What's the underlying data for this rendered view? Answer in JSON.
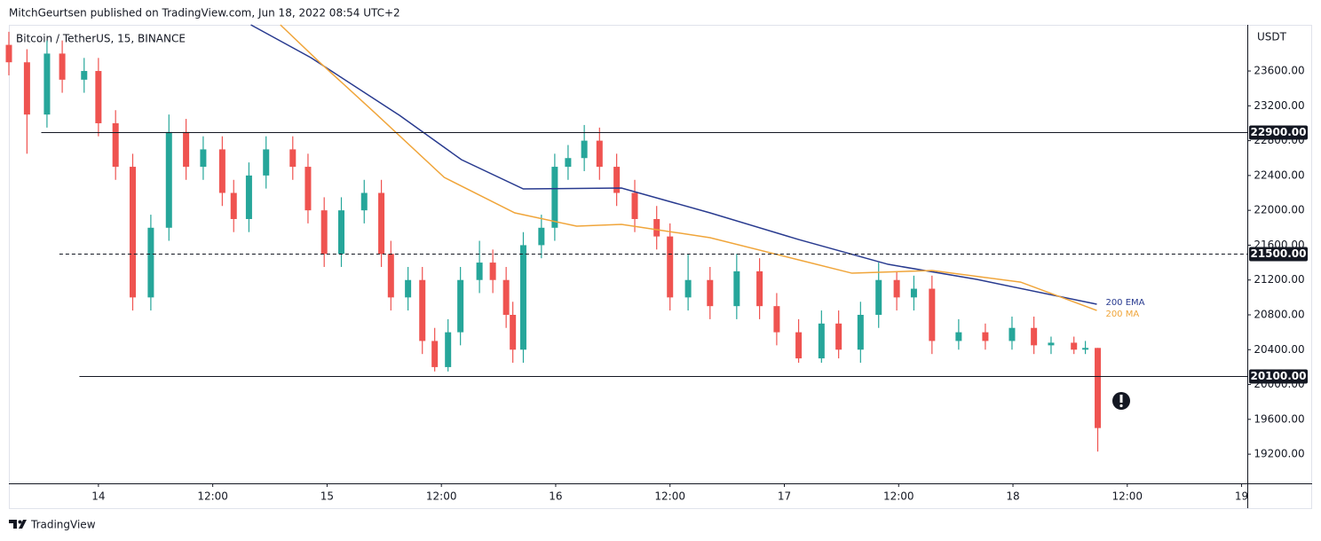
{
  "header": {
    "text": "MitchGeurtsen published on TradingView.com, Jun 18, 2022 08:54 UTC+2"
  },
  "footer": {
    "text": "TradingView"
  },
  "chart_data": {
    "type": "candlestick",
    "title": "Bitcoin / TetherUS, 15, BINANCE",
    "y_unit": "USDT",
    "xlim": [
      -9.4,
      120.6
    ],
    "ylim": [
      18865,
      24130
    ],
    "xticks": [
      {
        "value": 0,
        "label": "14"
      },
      {
        "value": 12,
        "label": "12:00"
      },
      {
        "value": 24,
        "label": "15"
      },
      {
        "value": 36,
        "label": "12:00"
      },
      {
        "value": 48,
        "label": "16"
      },
      {
        "value": 60,
        "label": "12:00"
      },
      {
        "value": 72,
        "label": "17"
      },
      {
        "value": 84,
        "label": "12:00"
      },
      {
        "value": 96,
        "label": "18"
      },
      {
        "value": 108,
        "label": "12:00"
      },
      {
        "value": 120,
        "label": "19"
      }
    ],
    "yticks": [
      {
        "value": 19200,
        "label": "19200.00"
      },
      {
        "value": 19600,
        "label": "19600.00"
      },
      {
        "value": 20000,
        "label": "20000.00"
      },
      {
        "value": 20400,
        "label": "20400.00"
      },
      {
        "value": 20800,
        "label": "20800.00"
      },
      {
        "value": 21200,
        "label": "21200.00"
      },
      {
        "value": 21600,
        "label": "21600.00"
      },
      {
        "value": 22000,
        "label": "22000.00"
      },
      {
        "value": 22400,
        "label": "22400.00"
      },
      {
        "value": 22800,
        "label": "22800.00"
      },
      {
        "value": 23200,
        "label": "23200.00"
      },
      {
        "value": 23600,
        "label": "23600.00"
      }
    ],
    "up_color": "#26a69a",
    "down_color": "#ef5350",
    "candles": {
      "x": [
        -9.4,
        -7.5,
        -5.4,
        -3.8,
        -1.5,
        0,
        1.8,
        3.6,
        5.5,
        7.4,
        9.2,
        11,
        13,
        14.2,
        15.8,
        17.6,
        20.4,
        22,
        23.7,
        25.5,
        27.9,
        29.7,
        30.7,
        32.5,
        34,
        35.3,
        36.7,
        38,
        40,
        41.4,
        42.8,
        43.5,
        44.6,
        46.5,
        47.9,
        49.3,
        51,
        52.6,
        54.4,
        56.3,
        58.6,
        60,
        61.9,
        64.2,
        67,
        69.4,
        71.2,
        73.5,
        75.9,
        77.7,
        80,
        81.9,
        83.8,
        85.6,
        87.5,
        90.3,
        93.1,
        95.9,
        98.2,
        100,
        102.4,
        103.6,
        104.9
      ],
      "open": [
        23900,
        23700,
        23100,
        23800,
        23500,
        23600,
        23000,
        22500,
        21000,
        21800,
        22900,
        22500,
        22700,
        22200,
        21900,
        22400,
        22700,
        22500,
        22000,
        21500,
        22000,
        22200,
        21500,
        21000,
        21200,
        20500,
        20200,
        20600,
        21200,
        21400,
        21200,
        20800,
        20400,
        21600,
        21800,
        22500,
        22600,
        22800,
        22500,
        22200,
        21900,
        21700,
        21000,
        21200,
        20900,
        21300,
        20900,
        20600,
        20300,
        20700,
        20400,
        20800,
        21200,
        21000,
        21100,
        20500,
        20600,
        20500,
        20650,
        20450,
        20480,
        20400,
        20420
      ],
      "high": [
        24050,
        23850,
        23950,
        23950,
        23750,
        23750,
        23150,
        22650,
        21950,
        23100,
        23050,
        22850,
        22850,
        22350,
        22550,
        22850,
        22850,
        22650,
        22150,
        22150,
        22350,
        22350,
        21650,
        21350,
        21350,
        20650,
        20750,
        21350,
        21650,
        21550,
        21350,
        20950,
        21750,
        21950,
        22650,
        22750,
        22980,
        22950,
        22650,
        22350,
        22050,
        21850,
        21500,
        21350,
        21500,
        21450,
        21050,
        20750,
        20850,
        20850,
        20950,
        21400,
        21300,
        21250,
        21250,
        20750,
        20700,
        20780,
        20780,
        20550,
        20550,
        20500,
        20420
      ],
      "low": [
        23550,
        22650,
        22950,
        23350,
        23350,
        22850,
        22350,
        20850,
        20850,
        21650,
        22350,
        22350,
        22050,
        21750,
        21750,
        22250,
        22350,
        21850,
        21350,
        21350,
        21850,
        21350,
        20850,
        20850,
        20350,
        20150,
        20150,
        20450,
        21050,
        21050,
        20650,
        20250,
        20250,
        21450,
        21650,
        22350,
        22450,
        22350,
        22050,
        21750,
        21550,
        20850,
        20850,
        20750,
        20750,
        20750,
        20450,
        20250,
        20250,
        20300,
        20250,
        20650,
        20850,
        20850,
        20350,
        20400,
        20400,
        20400,
        20350,
        20350,
        20350,
        20350,
        19230
      ],
      "close": [
        23700,
        23100,
        23800,
        23500,
        23600,
        23000,
        22500,
        21000,
        21800,
        22900,
        22500,
        22700,
        22200,
        21900,
        22400,
        22700,
        22500,
        22000,
        21500,
        22000,
        22200,
        21500,
        21000,
        21200,
        20500,
        20200,
        20600,
        21200,
        21400,
        21200,
        20800,
        20400,
        21600,
        21800,
        22500,
        22600,
        22800,
        22500,
        22200,
        21900,
        21700,
        21000,
        21200,
        20900,
        21300,
        20900,
        20600,
        20300,
        20700,
        20400,
        20800,
        21200,
        21000,
        21100,
        20500,
        20600,
        20500,
        20650,
        20450,
        20480,
        20400,
        20420,
        19500
      ]
    },
    "series": [
      {
        "name": "200 EMA",
        "color": "#283a8f",
        "x": [
          16.0,
          22.3,
          31.6,
          38.1,
          44.6,
          54.9,
          64.2,
          73.5,
          82.9,
          92.2,
          104.8
        ],
        "values": [
          24130,
          23753,
          23091,
          22582,
          22246,
          22256,
          21971,
          21665,
          21380,
          21207,
          20922
        ]
      },
      {
        "name": "200 MA",
        "color": "#f0a53a",
        "x": [
          19.1,
          23.2,
          28.8,
          36.3,
          43.7,
          50.2,
          54.9,
          64.2,
          73.5,
          79.1,
          87.5,
          96.8,
          104.8
        ],
        "values": [
          24130,
          23702,
          23142,
          22378,
          21971,
          21818,
          21839,
          21686,
          21431,
          21278,
          21309,
          21176,
          20850
        ]
      }
    ],
    "levels": [
      {
        "value": 22900,
        "label": "22900.00",
        "style": "solid",
        "start": -6.0
      },
      {
        "value": 21500,
        "label": "21500.00",
        "style": "dashed",
        "start": -4.1
      },
      {
        "value": 20100,
        "label": "20100.00",
        "style": "solid",
        "start": -2.0
      }
    ]
  }
}
